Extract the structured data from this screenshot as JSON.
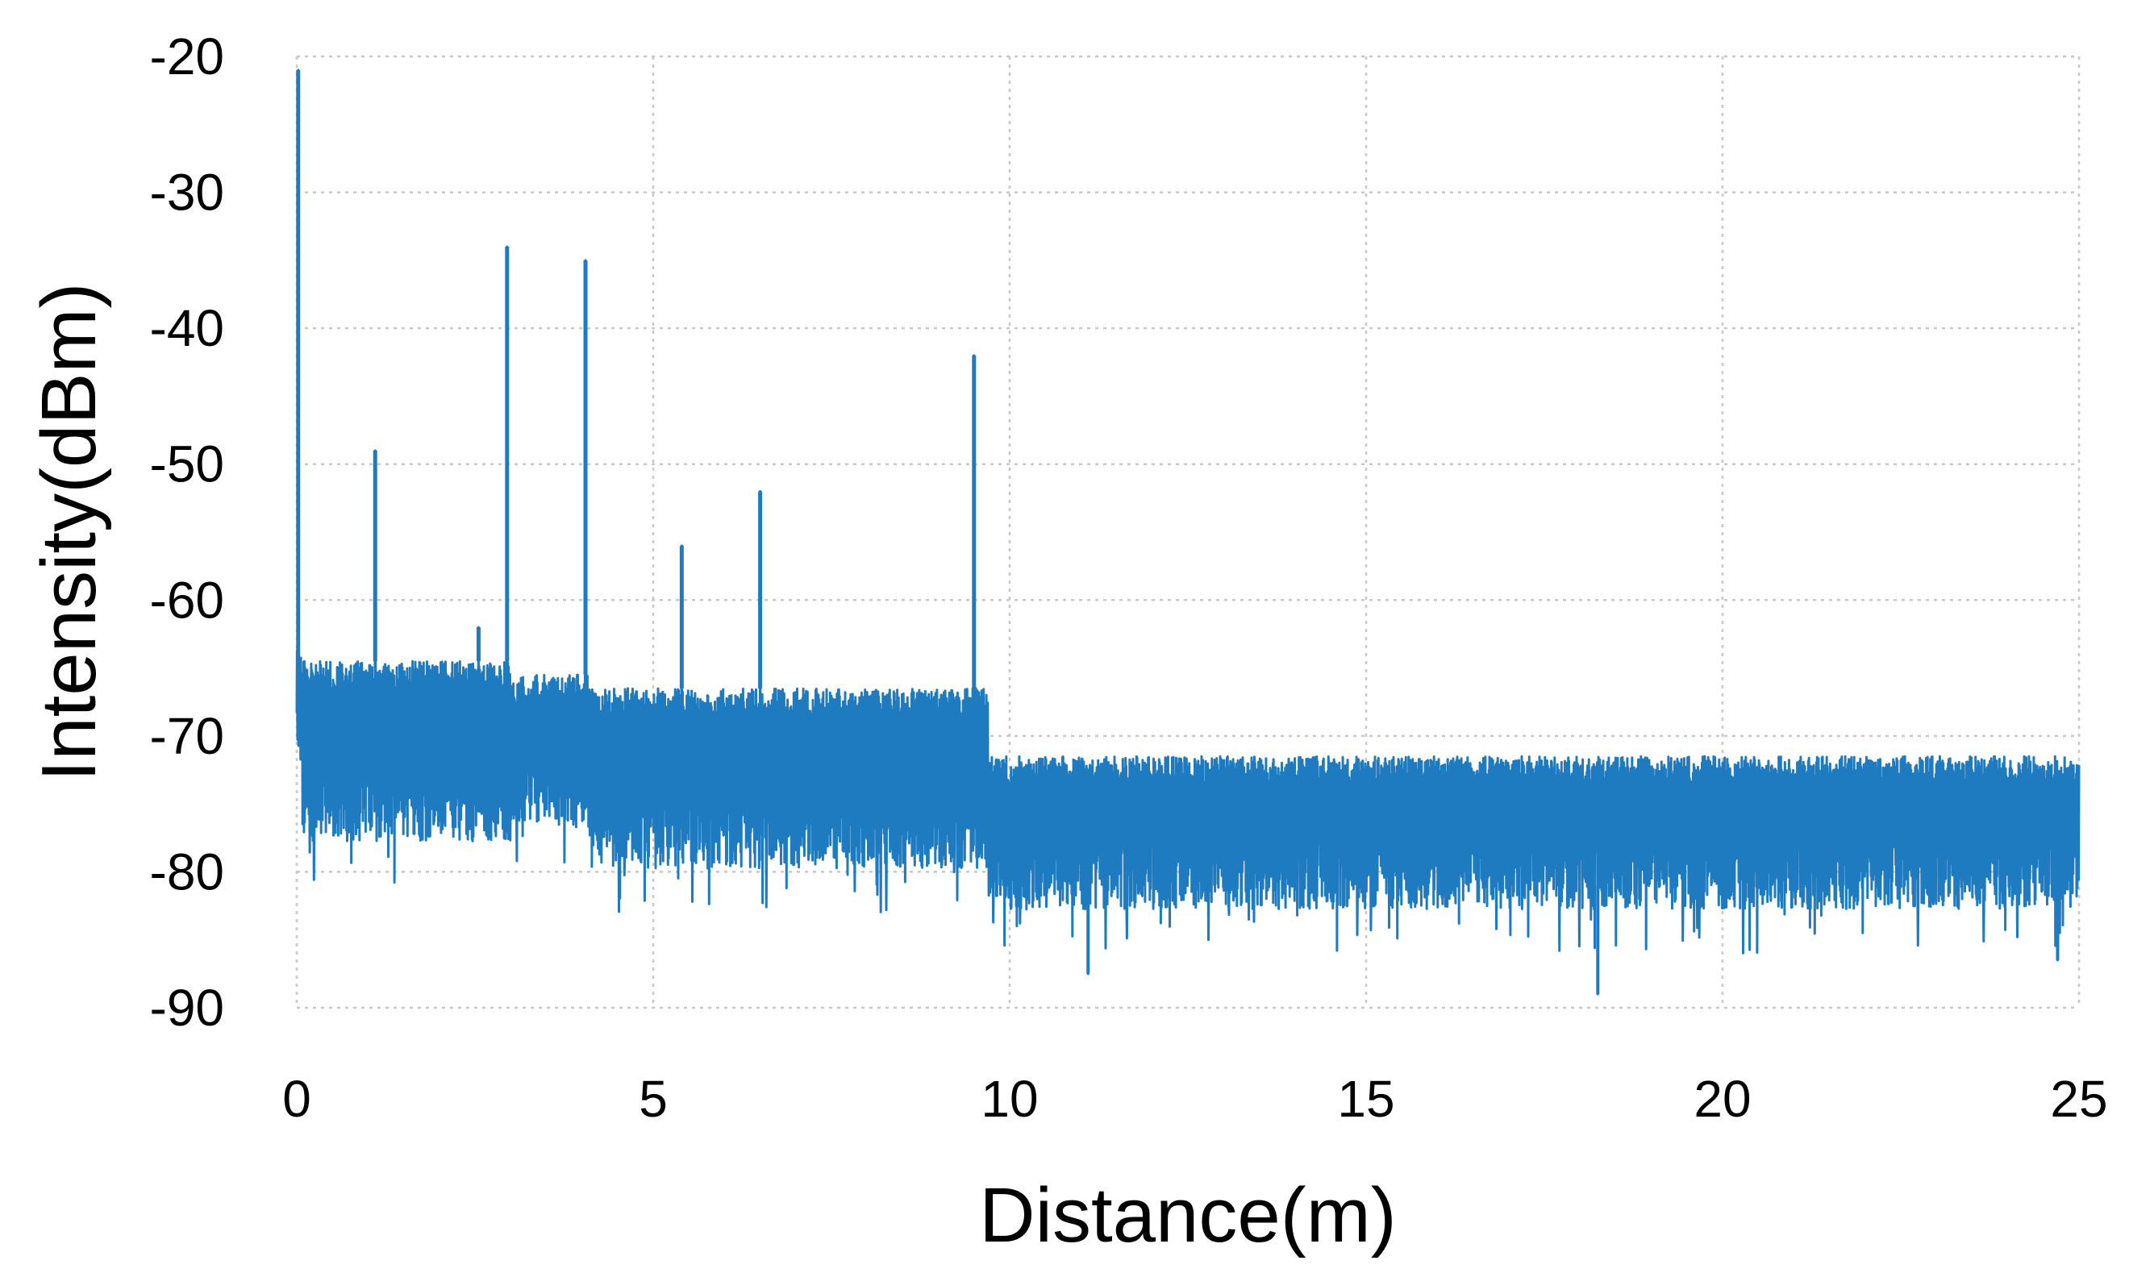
{
  "chart_data": {
    "type": "line",
    "title": "",
    "xlabel": "Distance(m)",
    "ylabel": "Intensity(dBm)",
    "xlim": [
      0,
      25
    ],
    "ylim": [
      -90,
      -20
    ],
    "x_ticks": [
      0,
      5,
      10,
      15,
      20,
      25
    ],
    "y_ticks": [
      -20,
      -30,
      -40,
      -50,
      -60,
      -70,
      -80,
      -90
    ],
    "grid": true,
    "grid_style": "dotted",
    "legend": "none",
    "series": [
      {
        "color": "#1f7bbf",
        "noise_bands": [
          {
            "x": [
              0.0,
              3.0
            ],
            "top": -64.5,
            "bottom": -76
          },
          {
            "x": [
              3.0,
              4.1
            ],
            "top": -65.5,
            "bottom": -75
          },
          {
            "x": [
              4.1,
              9.7
            ],
            "top": -66.5,
            "bottom": -78
          },
          {
            "x": [
              9.7,
              25.0
            ],
            "top": -71.5,
            "bottom": -81
          }
        ],
        "peaks": [
          {
            "x": 0.02,
            "y": -21
          },
          {
            "x": 1.1,
            "y": -49
          },
          {
            "x": 2.55,
            "y": -62
          },
          {
            "x": 2.95,
            "y": -34
          },
          {
            "x": 4.05,
            "y": -35
          },
          {
            "x": 5.4,
            "y": -56
          },
          {
            "x": 6.5,
            "y": -52
          },
          {
            "x": 9.5,
            "y": -42
          }
        ],
        "dips": [
          {
            "x": 11.1,
            "y": -87.5
          },
          {
            "x": 18.25,
            "y": -89
          },
          {
            "x": 24.7,
            "y": -86.5
          }
        ]
      }
    ]
  }
}
